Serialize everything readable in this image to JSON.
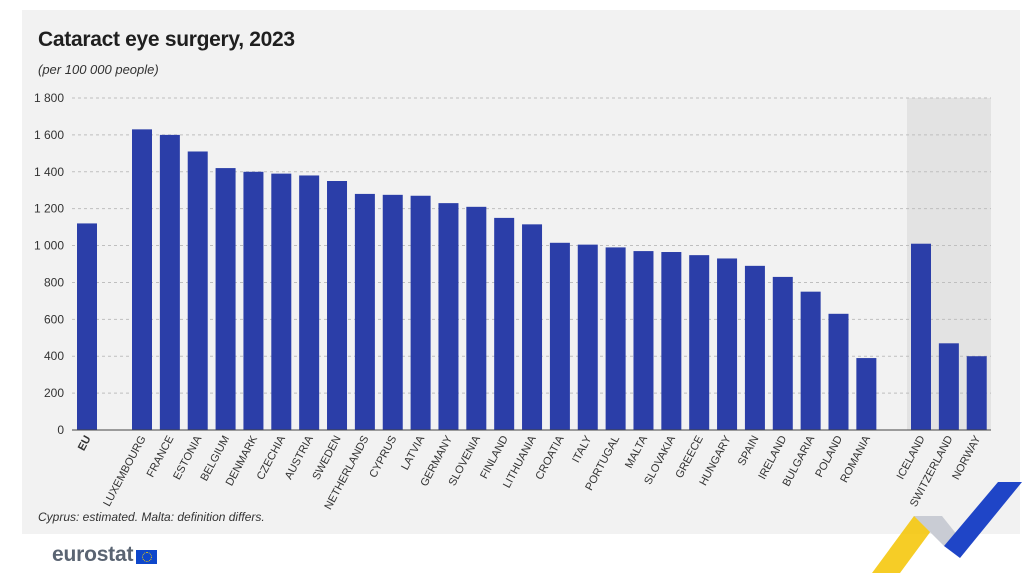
{
  "header": {
    "title": "Cataract eye surgery, 2023",
    "subtitle": "(per 100 000 people)"
  },
  "footnote": "Cyprus: estimated. Malta: definition differs.",
  "brand": {
    "logo_text": "eurostat",
    "flag_icon": "eu-flag-icon"
  },
  "colors": {
    "bar": "#2b3ea8",
    "panel": "#f2f2f2",
    "highlight": "#e3e3e3",
    "grid": "#bfbfbf"
  },
  "chart_data": {
    "type": "bar",
    "title": "Cataract eye surgery, 2023",
    "subtitle": "(per 100 000 people)",
    "categories": [
      "EU",
      "LUXEMBOURG",
      "FRANCE",
      "ESTONIA",
      "BELGIUM",
      "DENMARK",
      "CZECHIA",
      "AUSTRIA",
      "SWEDEN",
      "NETHERLANDS",
      "CYPRUS",
      "LATVIA",
      "GERMANY",
      "SLOVENIA",
      "FINLAND",
      "LITHUANIA",
      "CROATIA",
      "ITALY",
      "PORTUGAL",
      "MALTA",
      "SLOVAKIA",
      "GREECE",
      "HUNGARY",
      "SPAIN",
      "IRELAND",
      "BULGARIA",
      "POLAND",
      "ROMANIA",
      "ICELAND",
      "SWITZERLAND",
      "NORWAY"
    ],
    "values": [
      1120,
      1630,
      1600,
      1510,
      1420,
      1400,
      1390,
      1380,
      1350,
      1280,
      1275,
      1270,
      1230,
      1210,
      1150,
      1115,
      1015,
      1005,
      990,
      970,
      965,
      948,
      930,
      890,
      830,
      750,
      630,
      390,
      1010,
      470,
      400
    ],
    "groups": [
      "eu",
      "member",
      "member",
      "member",
      "member",
      "member",
      "member",
      "member",
      "member",
      "member",
      "member",
      "member",
      "member",
      "member",
      "member",
      "member",
      "member",
      "member",
      "member",
      "member",
      "member",
      "member",
      "member",
      "member",
      "member",
      "member",
      "member",
      "member",
      "efta",
      "efta",
      "efta"
    ],
    "ylim": [
      0,
      1800
    ],
    "yticks": [
      0,
      200,
      400,
      600,
      800,
      1000,
      1200,
      1400,
      1600,
      1800
    ],
    "ytick_labels": [
      "0",
      "200",
      "400",
      "600",
      "800",
      "1 000",
      "1 200",
      "1 400",
      "1 600",
      "1 800"
    ],
    "xlabel": "",
    "ylabel": "",
    "grid": true,
    "highlighted_group": "efta"
  }
}
